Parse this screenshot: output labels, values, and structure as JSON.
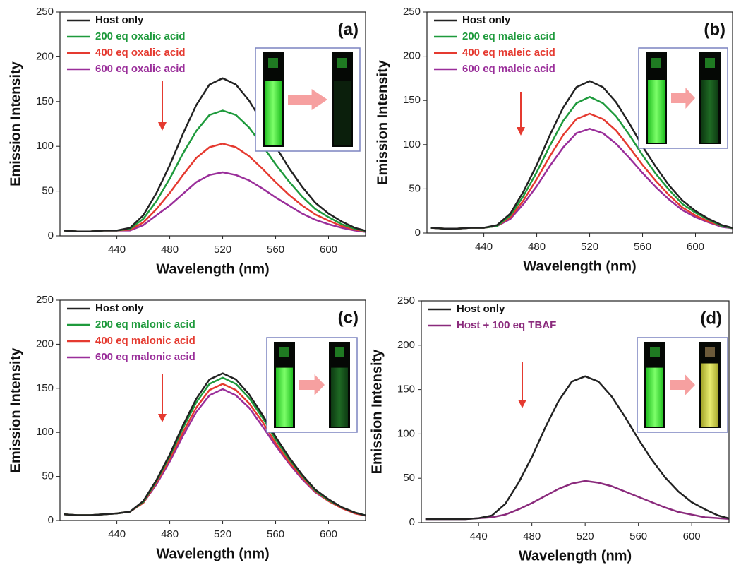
{
  "chart_data": [
    {
      "type": "line",
      "panel_label": "(a)",
      "x_label": "Wavelength (nm)",
      "y_label": "Emission Intensity",
      "xlim": [
        397,
        628
      ],
      "ylim": [
        0,
        250
      ],
      "xticks": [
        440,
        480,
        520,
        560,
        600
      ],
      "yticks": [
        0,
        50,
        100,
        150,
        200,
        250
      ],
      "x": [
        400,
        410,
        420,
        430,
        440,
        450,
        460,
        470,
        480,
        490,
        500,
        510,
        520,
        530,
        540,
        550,
        560,
        570,
        580,
        590,
        600,
        610,
        620,
        630
      ],
      "series": [
        {
          "name": "Host only",
          "color": "#222222",
          "values": [
            6,
            5,
            5,
            6,
            6,
            9,
            23,
            48,
            79,
            114,
            146,
            169,
            176,
            169,
            151,
            127,
            100,
            76,
            55,
            37,
            25,
            16,
            9,
            5
          ]
        },
        {
          "name": "200 eq oxalic acid",
          "color": "#1e9a3c",
          "values": [
            6,
            5,
            5,
            6,
            6,
            8,
            19,
            39,
            64,
            92,
            117,
            135,
            140,
            135,
            121,
            101,
            80,
            61,
            44,
            30,
            21,
            13,
            8,
            5
          ]
        },
        {
          "name": "400 eq oxalic acid",
          "color": "#e53a30",
          "values": [
            6,
            5,
            5,
            6,
            6,
            7,
            15,
            30,
            48,
            68,
            87,
            99,
            103,
            99,
            89,
            75,
            60,
            46,
            34,
            24,
            17,
            11,
            7,
            5
          ]
        },
        {
          "name": "600 eq oxalic acid",
          "color": "#9a2e9a",
          "values": [
            6,
            5,
            5,
            6,
            6,
            6,
            12,
            23,
            34,
            47,
            60,
            68,
            71,
            68,
            62,
            53,
            43,
            34,
            25,
            18,
            13,
            9,
            6,
            4
          ]
        }
      ]
    },
    {
      "type": "line",
      "panel_label": "(b)",
      "x_label": "Wavelength (nm)",
      "y_label": "Emission Intensity",
      "xlim": [
        397,
        628
      ],
      "ylim": [
        0,
        250
      ],
      "xticks": [
        440,
        480,
        520,
        560,
        600
      ],
      "yticks": [
        0,
        50,
        100,
        150,
        200,
        250
      ],
      "x": [
        400,
        410,
        420,
        430,
        440,
        450,
        460,
        470,
        480,
        490,
        500,
        510,
        520,
        530,
        540,
        550,
        560,
        570,
        580,
        590,
        600,
        610,
        620,
        630
      ],
      "series": [
        {
          "name": "Host only",
          "color": "#222222",
          "values": [
            6,
            5,
            5,
            6,
            6,
            9,
            22,
            47,
            77,
            111,
            142,
            165,
            172,
            165,
            148,
            124,
            98,
            75,
            54,
            37,
            25,
            16,
            9,
            5
          ]
        },
        {
          "name": "200 eq maleic acid",
          "color": "#1e9a3c",
          "values": [
            6,
            5,
            5,
            6,
            6,
            8,
            20,
            42,
            69,
            99,
            127,
            147,
            154,
            147,
            132,
            111,
            88,
            67,
            49,
            33,
            23,
            15,
            8,
            5
          ]
        },
        {
          "name": "400 eq maleic acid",
          "color": "#e53a30",
          "values": [
            6,
            5,
            5,
            6,
            6,
            8,
            18,
            37,
            61,
            87,
            111,
            129,
            135,
            129,
            116,
            97,
            77,
            59,
            43,
            29,
            20,
            13,
            8,
            5
          ]
        },
        {
          "name": "600 eq maleic acid",
          "color": "#9a2e9a",
          "values": [
            6,
            5,
            5,
            6,
            6,
            8,
            16,
            33,
            53,
            76,
            97,
            113,
            118,
            113,
            101,
            85,
            68,
            52,
            38,
            26,
            18,
            12,
            7,
            5
          ]
        }
      ]
    },
    {
      "type": "line",
      "panel_label": "(c)",
      "x_label": "Wavelength (nm)",
      "y_label": "Emission Intensity",
      "xlim": [
        397,
        628
      ],
      "ylim": [
        0,
        250
      ],
      "xticks": [
        440,
        480,
        520,
        560,
        600
      ],
      "yticks": [
        0,
        50,
        100,
        150,
        200,
        250
      ],
      "x": [
        400,
        410,
        420,
        430,
        440,
        450,
        460,
        470,
        480,
        490,
        500,
        510,
        520,
        530,
        540,
        550,
        560,
        570,
        580,
        590,
        600,
        610,
        620,
        630
      ],
      "series": [
        {
          "name": "Host only",
          "color": "#222222",
          "values": [
            7,
            6,
            6,
            7,
            8,
            10,
            22,
            46,
            75,
            108,
            138,
            160,
            167,
            160,
            143,
            120,
            95,
            72,
            52,
            35,
            24,
            15,
            9,
            5
          ]
        },
        {
          "name": "200 eq malonic acid",
          "color": "#1e9a3c",
          "values": [
            7,
            6,
            6,
            7,
            8,
            10,
            21,
            45,
            73,
            105,
            134,
            155,
            162,
            155,
            139,
            117,
            92,
            70,
            51,
            34,
            23,
            15,
            9,
            5
          ]
        },
        {
          "name": "400 eq malonic acid",
          "color": "#e53a30",
          "values": [
            7,
            6,
            6,
            7,
            8,
            10,
            20,
            43,
            70,
            100,
            128,
            148,
            155,
            148,
            133,
            112,
            88,
            67,
            49,
            33,
            22,
            14,
            8,
            5
          ]
        },
        {
          "name": "600 eq malonic acid",
          "color": "#9a2e9a",
          "values": [
            7,
            6,
            6,
            7,
            8,
            10,
            20,
            41,
            67,
            96,
            123,
            142,
            149,
            142,
            128,
            107,
            85,
            65,
            47,
            32,
            22,
            14,
            8,
            5
          ]
        }
      ]
    },
    {
      "type": "line",
      "panel_label": "(d)",
      "x_label": "Wavelength (nm)",
      "y_label": "Emission Intensity",
      "xlim": [
        397,
        628
      ],
      "ylim": [
        0,
        250
      ],
      "xticks": [
        440,
        480,
        520,
        560,
        600
      ],
      "yticks": [
        0,
        50,
        100,
        150,
        200,
        250
      ],
      "x": [
        400,
        410,
        420,
        430,
        440,
        450,
        460,
        470,
        480,
        490,
        500,
        510,
        520,
        530,
        540,
        550,
        560,
        570,
        580,
        590,
        600,
        610,
        620,
        630
      ],
      "series": [
        {
          "name": "Host only",
          "color": "#222222",
          "values": [
            4,
            4,
            4,
            4,
            5,
            8,
            21,
            45,
            74,
            107,
            137,
            159,
            165,
            159,
            142,
            119,
            94,
            71,
            51,
            35,
            23,
            15,
            8,
            4
          ]
        },
        {
          "name": "Host + 100 eq TBAF",
          "color": "#8a2a7c",
          "values": [
            4,
            4,
            4,
            4,
            5,
            6,
            9,
            15,
            22,
            30,
            38,
            44,
            47,
            45,
            41,
            35,
            29,
            23,
            17,
            12,
            9,
            6,
            5,
            4
          ]
        }
      ]
    }
  ]
}
